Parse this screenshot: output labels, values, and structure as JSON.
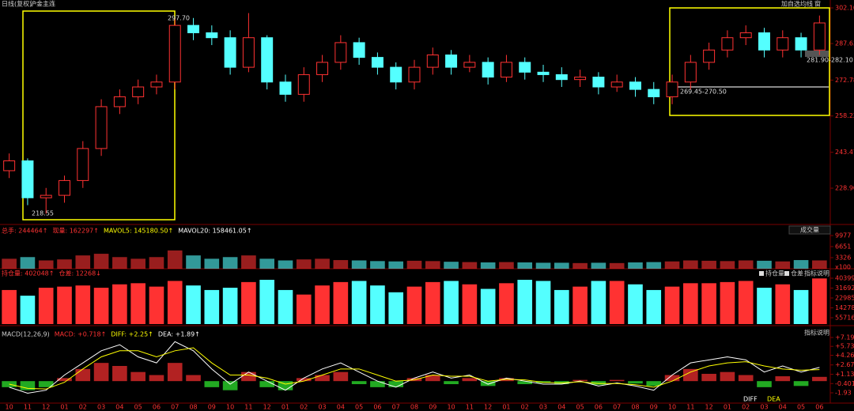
{
  "header": {
    "period": "日线(复权)",
    "symbol": "沪金主连",
    "actions": [
      "加自选",
      "均线",
      "窗"
    ]
  },
  "chart_data": [
    {
      "type": "candlestick",
      "categories": [
        "10",
        "11",
        "12",
        "01",
        "02",
        "03",
        "04",
        "05",
        "06",
        "07",
        "08",
        "09",
        "10",
        "11",
        "12",
        "01",
        "02",
        "03",
        "04",
        "05",
        "06",
        "07",
        "08",
        "09",
        "10",
        "11",
        "12",
        "01",
        "02",
        "03",
        "04",
        "05",
        "06",
        "07",
        "08",
        "09",
        "10",
        "11",
        "12",
        "01",
        "02",
        "03",
        "04",
        "05",
        "06"
      ],
      "open": [
        236,
        240,
        225,
        226,
        232,
        245,
        262,
        266,
        270,
        272,
        295,
        292,
        290,
        278,
        290,
        272,
        267,
        275,
        280,
        288,
        282,
        278,
        272,
        278,
        283,
        278,
        280,
        274,
        280,
        276,
        275,
        273,
        274,
        270,
        272,
        269,
        266,
        272,
        280,
        285,
        290,
        292,
        285,
        290,
        285
      ],
      "high": [
        243,
        241,
        229,
        234,
        248,
        265,
        269,
        273,
        275,
        297.7,
        298,
        295,
        293,
        300,
        291,
        275,
        278,
        283,
        291,
        290,
        284,
        280,
        281,
        286,
        285,
        283,
        282,
        283,
        282,
        279,
        278,
        277,
        276,
        275,
        274,
        272,
        275,
        283,
        288,
        293,
        295,
        294,
        293,
        292,
        299
      ],
      "low": [
        233,
        222,
        218.55,
        223,
        229,
        242,
        259,
        263,
        267,
        269,
        289,
        287,
        275,
        276,
        269,
        264,
        264,
        272,
        277,
        279,
        275,
        269,
        269,
        275,
        275,
        276,
        271,
        272,
        273,
        272,
        270,
        270,
        267,
        268,
        266,
        263,
        263,
        269,
        277,
        282,
        287,
        282,
        282,
        282,
        283
      ],
      "close": [
        240,
        225,
        226,
        232,
        245,
        262,
        266,
        270,
        272,
        295,
        292,
        290,
        278,
        290,
        272,
        267,
        275,
        280,
        288,
        282,
        278,
        272,
        278,
        283,
        278,
        280,
        274,
        280,
        276,
        275,
        273,
        274,
        270,
        272,
        269,
        266,
        272,
        280,
        285,
        290,
        292,
        285,
        290,
        285,
        296
      ],
      "up_color": "#ff3232",
      "down_color": "#54ffff",
      "ylim": [
        214.8,
        302.1
      ],
      "yticks": [
        {
          "value": 228.9,
          "label": "228.90"
        },
        243.47,
        258.22,
        272.78,
        287.63,
        {
          "value": 302.1,
          "label": "302.10"
        }
      ],
      "annotations": [
        "297.70",
        "218.55",
        "269.45-270.50",
        "281.90-282.10"
      ]
    },
    {
      "type": "bar",
      "title_parts": [
        "总手: 244464↑",
        "现量: 162297↑",
        "MAVOL5: 145180.50↑",
        "MAVOL20: 158461.05↑"
      ],
      "selector": "成交量",
      "unit": "x100",
      "values": [
        3000,
        3500,
        2500,
        2800,
        4000,
        4500,
        3500,
        3000,
        3500,
        5500,
        4000,
        3000,
        3500,
        4000,
        3000,
        2500,
        2800,
        3000,
        2600,
        2500,
        2300,
        2200,
        2400,
        2300,
        2100,
        2000,
        1900,
        2000,
        1900,
        1800,
        1800,
        1700,
        1800,
        1700,
        1900,
        2000,
        2200,
        2500,
        2400,
        2300,
        2500,
        2400,
        2200,
        2600,
        2500
      ],
      "ylim": [
        0,
        9977
      ],
      "yticks": [
        9977,
        6651,
        3326
      ]
    },
    {
      "type": "bar",
      "title_parts": [
        "持仓量: 402048↑",
        "仓差: 12268↓"
      ],
      "legend": [
        "持仓量",
        "仓差"
      ],
      "help": "指标说明",
      "values": [
        300000,
        250000,
        320000,
        330000,
        340000,
        320000,
        350000,
        360000,
        330000,
        380000,
        340000,
        300000,
        320000,
        370000,
        390000,
        300000,
        260000,
        340000,
        370000,
        380000,
        340000,
        280000,
        330000,
        370000,
        380000,
        350000,
        310000,
        360000,
        390000,
        380000,
        300000,
        330000,
        380000,
        380000,
        350000,
        300000,
        330000,
        360000,
        360000,
        370000,
        380000,
        320000,
        350000,
        300000,
        402048
      ],
      "ylim": [
        0,
        403990
      ],
      "yticks": [
        403990,
        316922,
        229853,
        142785,
        55716
      ]
    },
    {
      "type": "macd",
      "title_parts": [
        "MACD(12,26,9)",
        "MACD: +0.718↑",
        "DIFF: +2.25↑",
        "DEA: +1.89↑"
      ],
      "help": "指标说明",
      "hist": [
        -1,
        -1.5,
        -1,
        0.5,
        2,
        3,
        2.5,
        1.5,
        1,
        3,
        1,
        -1,
        -1.5,
        1.5,
        -1,
        -1.5,
        0.5,
        1,
        1.5,
        -0.5,
        -1,
        -1,
        0.5,
        1,
        -0.5,
        0.5,
        -0.8,
        0.5,
        -0.5,
        -0.3,
        -0.5,
        0.2,
        -0.6,
        0.2,
        -0.4,
        -0.8,
        1,
        2,
        1.2,
        1.5,
        1,
        -1,
        0.8,
        -0.8,
        0.7
      ],
      "series": [
        {
          "name": "DIFF",
          "color": "#ffffff",
          "values": [
            -1,
            -2,
            -1.5,
            1,
            3,
            5,
            6,
            4,
            3,
            6.5,
            5,
            2,
            -0.5,
            1.5,
            0,
            -1.5,
            0.5,
            2,
            3,
            1.5,
            0,
            -1,
            0.5,
            1.5,
            0.5,
            1,
            -0.5,
            0.5,
            0,
            -0.5,
            -0.5,
            0,
            -0.8,
            -0.3,
            -0.8,
            -1.5,
            1,
            3,
            3.5,
            4,
            3.5,
            1.5,
            2.5,
            1.5,
            2.25
          ]
        },
        {
          "name": "DEA",
          "color": "#ffff00",
          "values": [
            -0.5,
            -1.2,
            -1.3,
            -0.2,
            2,
            4,
            5,
            5,
            4,
            5,
            5.5,
            3,
            1,
            1,
            0.5,
            -0.5,
            0,
            1,
            2,
            2,
            1,
            0,
            0.2,
            1,
            0.8,
            0.8,
            0,
            0.3,
            0.2,
            -0.2,
            -0.3,
            -0.1,
            -0.4,
            -0.4,
            -0.6,
            -1,
            0,
            1.5,
            2.5,
            3,
            3.2,
            2.5,
            2,
            1.8,
            1.89
          ]
        }
      ],
      "ylim": [
        -1.93,
        7.19
      ],
      "yticks": [
        {
          "value": 7.19,
          "label": "+7.19"
        },
        {
          "value": 5.73,
          "label": "+5.73"
        },
        {
          "value": 4.26,
          "label": "+4.26"
        },
        {
          "value": 2.67,
          "label": "+2.67"
        },
        {
          "value": 1.13,
          "label": "+1.13"
        },
        -0.401,
        -1.93
      ]
    }
  ]
}
